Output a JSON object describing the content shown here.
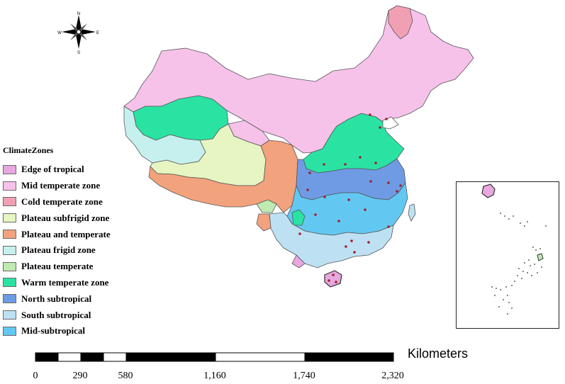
{
  "legend": {
    "title": "ClimateZones",
    "items": [
      {
        "label": "Edge of tropical",
        "color": "#e7a8e0"
      },
      {
        "label": "Mid temperate zone",
        "color": "#f6c2ea"
      },
      {
        "label": "Cold temperate zone",
        "color": "#f1a0b4"
      },
      {
        "label": "Plateau subfrigid zone",
        "color": "#e6f5c2"
      },
      {
        "label": "Plateau and temperate",
        "color": "#f2a27c"
      },
      {
        "label": "Plateau frigid zone",
        "color": "#c6f0ee"
      },
      {
        "label": "Plateau temperate",
        "color": "#bfeab1"
      },
      {
        "label": "Warm temperate zone",
        "color": "#2ae3a3"
      },
      {
        "label": "North subtropical",
        "color": "#6f9be5"
      },
      {
        "label": "South subtropical",
        "color": "#bde1f3"
      },
      {
        "label": "Mid-subtropical",
        "color": "#62c8f1"
      }
    ]
  },
  "scale_bar": {
    "unit": "Kilometers",
    "ticks": [
      "0",
      "290",
      "580",
      "1,160",
      "1,740",
      "2,320"
    ]
  },
  "compass": {
    "icon": "north-arrow-compass-icon",
    "labels": [
      "N",
      "S",
      "E",
      "W"
    ]
  },
  "colors": {
    "station_dot": "#a02028",
    "border": "#555555",
    "dots": "#333333"
  }
}
